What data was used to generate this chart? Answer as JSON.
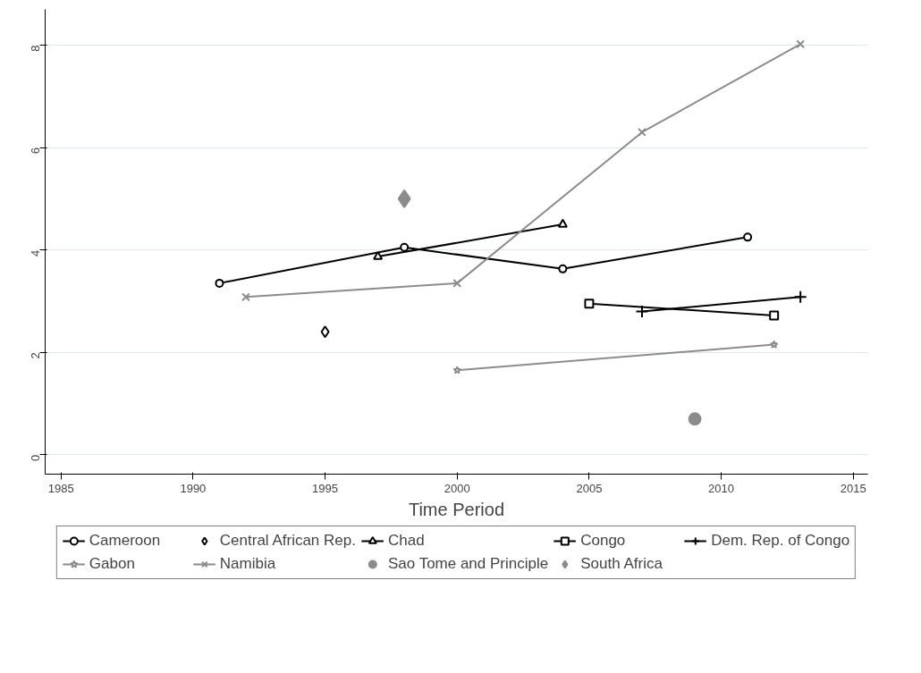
{
  "chart_data": {
    "type": "line",
    "xlabel": "Time Period",
    "xlim": [
      1984.4,
      2015.55
    ],
    "ylim": [
      -0.38,
      8.7
    ],
    "xticks": [
      1985,
      1990,
      1995,
      2000,
      2005,
      2010,
      2015
    ],
    "yticks": [
      0,
      2,
      4,
      6,
      8
    ],
    "grid": "y",
    "legend": "bottom",
    "series": [
      {
        "name": "Cameroon",
        "color": "#000000",
        "marker": "circle",
        "x": [
          1991,
          1998,
          2004,
          2011
        ],
        "values": [
          3.35,
          4.05,
          3.63,
          4.25
        ]
      },
      {
        "name": "Central African Rep.",
        "color": "#000000",
        "marker": "diamond",
        "x": [
          1995
        ],
        "values": [
          2.4
        ]
      },
      {
        "name": "Chad",
        "color": "#000000",
        "marker": "triangle",
        "x": [
          1997,
          2004
        ],
        "values": [
          3.87,
          4.5
        ]
      },
      {
        "name": "Congo",
        "color": "#000000",
        "marker": "square",
        "x": [
          2005,
          2012
        ],
        "values": [
          2.95,
          2.72
        ]
      },
      {
        "name": "Dem. Rep. of Congo",
        "color": "#000000",
        "marker": "cross",
        "x": [
          2007,
          2013
        ],
        "values": [
          2.8,
          3.08
        ]
      },
      {
        "name": "Gabon",
        "color": "#8c8c8c",
        "marker": "star",
        "x": [
          2000,
          2012
        ],
        "values": [
          1.65,
          2.15
        ]
      },
      {
        "name": "Namibia",
        "color": "#8c8c8c",
        "marker": "x",
        "x": [
          1992,
          2000,
          2007,
          2013
        ],
        "values": [
          3.08,
          3.35,
          6.3,
          8.02
        ]
      },
      {
        "name": "Sao Tome and Principle",
        "color": "#8c8c8c",
        "marker": "circle",
        "x": [
          2009
        ],
        "values": [
          0.7
        ]
      },
      {
        "name": "South Africa",
        "color": "#8c8c8c",
        "marker": "diamond",
        "x": [
          1998
        ],
        "values": [
          5.0
        ]
      }
    ]
  }
}
